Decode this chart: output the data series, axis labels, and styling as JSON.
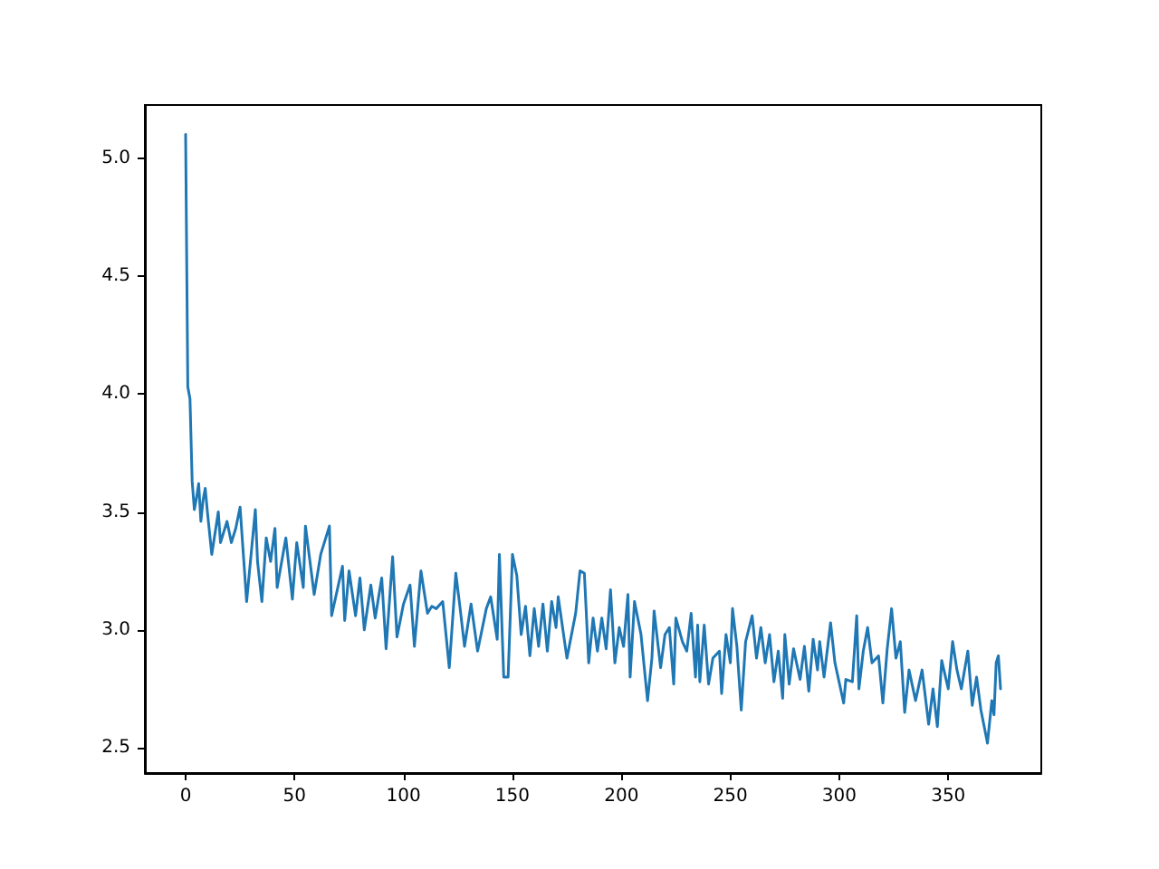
{
  "chart_data": {
    "type": "line",
    "xlim": [
      -18.7,
      392.7
    ],
    "ylim": [
      2.393,
      5.225
    ],
    "xticks": [
      0,
      50,
      100,
      150,
      200,
      250,
      300,
      350
    ],
    "yticks": [
      2.5,
      {
        "value": 3,
        "label": "3.0"
      },
      3.5,
      {
        "value": 4,
        "label": "4.0"
      },
      4.5,
      {
        "value": 5,
        "label": "5.0"
      }
    ],
    "grid": false,
    "marker": "none",
    "line_style": "solid",
    "series": [
      {
        "color": "#1f77b4",
        "x": [
          0,
          1,
          2,
          3,
          4,
          5,
          6,
          7,
          8,
          9,
          10,
          12,
          15,
          16,
          19,
          21,
          23,
          25,
          28,
          32,
          33,
          35,
          37,
          39,
          41,
          42,
          46,
          49,
          51,
          54,
          55,
          59,
          62,
          66,
          67,
          72,
          73,
          75,
          78,
          80,
          82,
          85,
          87,
          90,
          92,
          95,
          97,
          100,
          103,
          105,
          108,
          111,
          113,
          115,
          118,
          121,
          124,
          126,
          128,
          131,
          134,
          138,
          140,
          143,
          144,
          146,
          148,
          150,
          152,
          154,
          156,
          158,
          160,
          162,
          164,
          166,
          168,
          170,
          171,
          173,
          175,
          179,
          181,
          183,
          185,
          187,
          189,
          191,
          193,
          195,
          197,
          199,
          201,
          203,
          204,
          206,
          209,
          212,
          214,
          215,
          218,
          220,
          222,
          224,
          225,
          228,
          230,
          232,
          234,
          235,
          236,
          238,
          240,
          242,
          245,
          246,
          248,
          250,
          251,
          253,
          255,
          257,
          260,
          262,
          264,
          266,
          268,
          270,
          272,
          274,
          275,
          277,
          279,
          282,
          284,
          286,
          288,
          290,
          291,
          293,
          296,
          298,
          302,
          303,
          306,
          308,
          309,
          311,
          313,
          315,
          318,
          320,
          322,
          324,
          326,
          328,
          330,
          332,
          335,
          338,
          341,
          343,
          345,
          347,
          350,
          352,
          354,
          356,
          359,
          361,
          363,
          365,
          368,
          370,
          371,
          372,
          373,
          374
        ],
        "values": [
          5.1,
          4.03,
          3.98,
          3.63,
          3.51,
          3.56,
          3.62,
          3.46,
          3.55,
          3.6,
          3.5,
          3.32,
          3.5,
          3.37,
          3.46,
          3.37,
          3.43,
          3.52,
          3.12,
          3.51,
          3.29,
          3.12,
          3.39,
          3.29,
          3.43,
          3.18,
          3.39,
          3.13,
          3.37,
          3.18,
          3.44,
          3.15,
          3.32,
          3.44,
          3.06,
          3.27,
          3.04,
          3.25,
          3.06,
          3.22,
          3,
          3.19,
          3.05,
          3.22,
          2.92,
          3.31,
          2.97,
          3.11,
          3.19,
          2.93,
          3.25,
          3.07,
          3.1,
          3.09,
          3.12,
          2.84,
          3.24,
          3.09,
          2.93,
          3.11,
          2.91,
          3.09,
          3.14,
          2.96,
          3.32,
          2.8,
          2.8,
          3.32,
          3.23,
          2.98,
          3.1,
          2.89,
          3.09,
          2.93,
          3.11,
          2.91,
          3.12,
          3.01,
          3.14,
          3.01,
          2.88,
          3.07,
          3.25,
          3.24,
          2.86,
          3.05,
          2.91,
          3.05,
          2.92,
          3.17,
          2.86,
          3.01,
          2.93,
          3.15,
          2.8,
          3.12,
          2.98,
          2.7,
          2.88,
          3.08,
          2.84,
          2.98,
          3.01,
          2.77,
          3.05,
          2.95,
          2.91,
          3.07,
          2.8,
          3.02,
          2.78,
          3.02,
          2.77,
          2.88,
          2.91,
          2.73,
          2.98,
          2.86,
          3.09,
          2.93,
          2.66,
          2.95,
          3.06,
          2.88,
          3.01,
          2.86,
          2.98,
          2.78,
          2.91,
          2.71,
          2.98,
          2.77,
          2.92,
          2.79,
          2.93,
          2.74,
          2.96,
          2.83,
          2.95,
          2.8,
          3.03,
          2.86,
          2.69,
          2.79,
          2.78,
          3.06,
          2.75,
          2.91,
          3.01,
          2.86,
          2.89,
          2.69,
          2.92,
          3.09,
          2.88,
          2.95,
          2.65,
          2.83,
          2.7,
          2.83,
          2.6,
          2.75,
          2.59,
          2.87,
          2.75,
          2.95,
          2.83,
          2.75,
          2.91,
          2.68,
          2.8,
          2.66,
          2.52,
          2.7,
          2.64,
          2.86,
          2.89,
          2.75
        ]
      }
    ]
  }
}
